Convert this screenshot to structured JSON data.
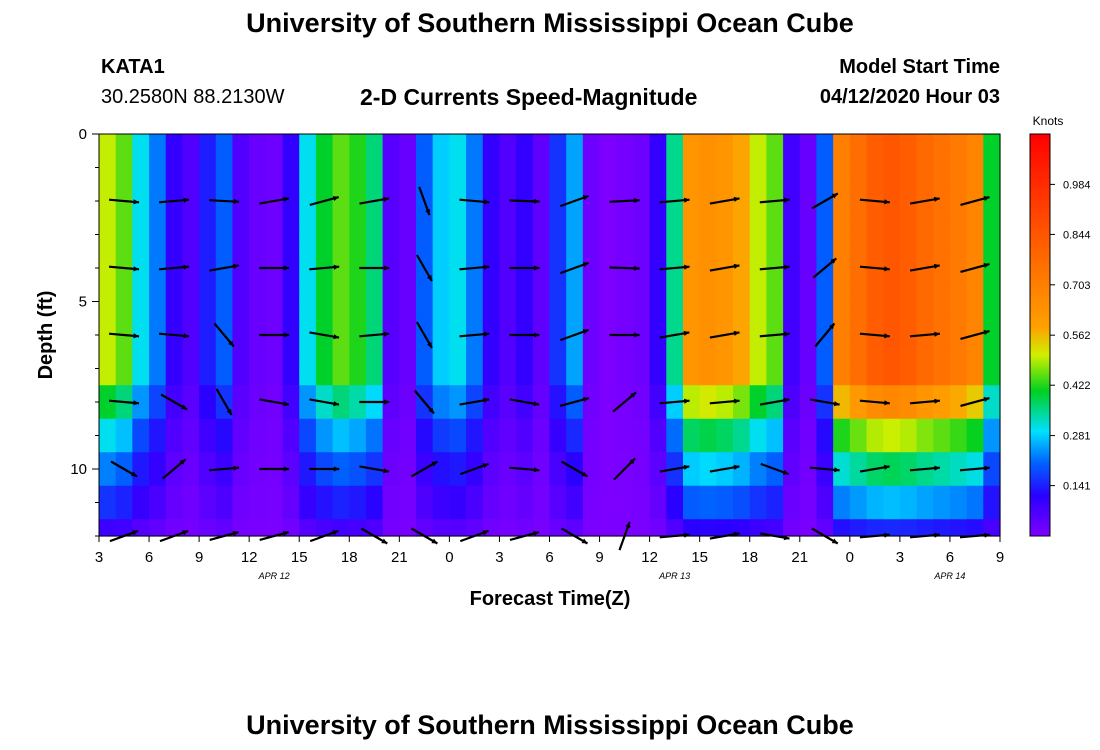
{
  "header": {
    "title": "University of Southern Mississippi Ocean Cube",
    "station_id": "KATA1",
    "coordinates": "30.2580N 88.2130W",
    "subtitle": "2-D Currents Speed-Magnitude",
    "model_start_label": "Model Start Time",
    "model_start_value": "04/12/2020 Hour 03"
  },
  "footer": {
    "title": "University of Southern Mississippi Ocean Cube"
  },
  "chart_data": {
    "type": "heatmap",
    "title": "2-D Currents Speed-Magnitude",
    "xlabel": "Forecast Time(Z)",
    "ylabel": "Depth (ft)",
    "x_ticks": [
      "3",
      "6",
      "9",
      "12",
      "15",
      "18",
      "21",
      "0",
      "3",
      "6",
      "9",
      "12",
      "15",
      "18",
      "21",
      "0",
      "3",
      "6",
      "9"
    ],
    "x_range_hours": [
      0,
      54
    ],
    "date_labels": [
      {
        "text": "APR 12",
        "hour": 10.5
      },
      {
        "text": "APR 13",
        "hour": 34.5
      },
      {
        "text": "APR 14",
        "hour": 51
      }
    ],
    "y_ticks": [
      0,
      5,
      10
    ],
    "ylim": [
      0,
      12
    ],
    "colorbar": {
      "label": "Knots",
      "ticks": [
        0.141,
        0.281,
        0.422,
        0.562,
        0.703,
        0.844,
        0.984
      ],
      "range": [
        0.0,
        1.125
      ]
    },
    "column_speeds_knots": [
      0.5,
      0.45,
      0.3,
      0.22,
      0.1,
      0.06,
      0.14,
      0.2,
      0.06,
      0.03,
      0.02,
      0.1,
      0.3,
      0.4,
      0.45,
      0.42,
      0.36,
      0.05,
      0.03,
      0.2,
      0.28,
      0.3,
      0.22,
      0.1,
      0.06,
      0.1,
      0.04,
      0.16,
      0.25,
      0.02,
      0.0,
      0.01,
      0.02,
      0.1,
      0.35,
      0.62,
      0.64,
      0.62,
      0.58,
      0.5,
      0.45,
      0.08,
      0.03,
      0.2,
      0.7,
      0.76,
      0.82,
      0.84,
      0.82,
      0.78,
      0.75,
      0.72,
      0.68,
      0.4
    ],
    "vector_times_hours": [
      1.5,
      4.5,
      7.5,
      10.5,
      13.5,
      16.5,
      19.5,
      22.5,
      25.5,
      28.5,
      31.5,
      34.5,
      37.5,
      40.5,
      43.5,
      46.5,
      49.5,
      52.5
    ],
    "vector_depths_ft": [
      2,
      4,
      6,
      8,
      10,
      12
    ],
    "vector_dir_deg": [
      [
        -5,
        5,
        -3,
        10,
        15,
        10,
        -70,
        -5,
        -2,
        20,
        3,
        5,
        10,
        5,
        30,
        -5,
        10,
        15
      ],
      [
        -5,
        5,
        10,
        0,
        5,
        0,
        -60,
        5,
        0,
        20,
        -2,
        5,
        10,
        5,
        40,
        -5,
        10,
        15
      ],
      [
        -5,
        -5,
        -50,
        0,
        -10,
        5,
        -60,
        5,
        0,
        20,
        0,
        10,
        10,
        5,
        50,
        -5,
        5,
        15
      ],
      [
        -5,
        -30,
        -60,
        -10,
        -10,
        0,
        -50,
        10,
        -10,
        15,
        40,
        5,
        5,
        10,
        -10,
        -5,
        5,
        15
      ],
      [
        -30,
        40,
        5,
        0,
        0,
        -10,
        30,
        20,
        -5,
        -30,
        45,
        10,
        10,
        -20,
        -5,
        10,
        5,
        5
      ],
      [
        20,
        20,
        15,
        15,
        20,
        -30,
        -30,
        20,
        15,
        -30,
        70,
        5,
        10,
        -10,
        -30,
        5,
        5,
        5
      ]
    ]
  }
}
